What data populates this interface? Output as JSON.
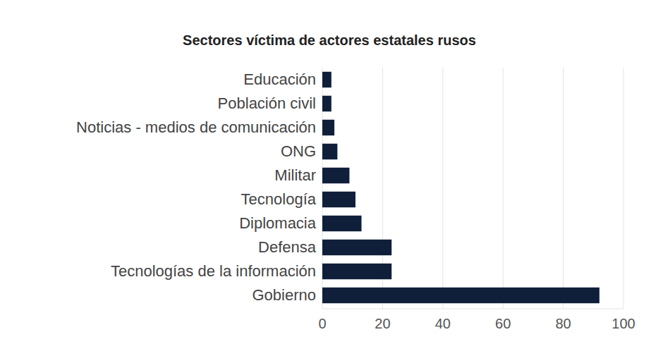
{
  "chart_data": {
    "type": "bar",
    "orientation": "horizontal",
    "title": "Sectores víctima de actores estatales rusos",
    "categories": [
      "Educación",
      "Población civil",
      "Noticias - medios de comunicación",
      "ONG",
      "Militar",
      "Tecnología",
      "Diplomacia",
      "Defensa",
      "Tecnologías de la información",
      "Gobierno"
    ],
    "values": [
      3,
      3,
      4,
      5,
      9,
      11,
      13,
      23,
      23,
      92
    ],
    "color": "#0f1f3a",
    "xlim": [
      0,
      100
    ],
    "xticks": [
      0,
      20,
      40,
      60,
      80,
      100
    ],
    "grid": true
  }
}
